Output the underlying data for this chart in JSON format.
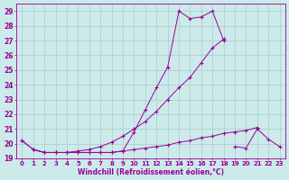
{
  "xlabel": "Windchill (Refroidissement éolien,°C)",
  "x_values": [
    0,
    1,
    2,
    3,
    4,
    5,
    6,
    7,
    8,
    9,
    10,
    11,
    12,
    13,
    14,
    15,
    16,
    17,
    18,
    19,
    20,
    21,
    22,
    23
  ],
  "series1": [
    20.2,
    19.6,
    19.4,
    19.4,
    19.4,
    19.4,
    19.4,
    19.4,
    19.4,
    19.5,
    20.8,
    22.3,
    23.8,
    25.2,
    29.0,
    28.5,
    28.6,
    29.0,
    27.0,
    null,
    null,
    null,
    null,
    null
  ],
  "series2": [
    20.2,
    19.6,
    19.4,
    19.4,
    19.4,
    19.5,
    19.6,
    19.8,
    20.1,
    20.5,
    21.0,
    21.5,
    22.2,
    23.0,
    23.8,
    24.5,
    25.5,
    26.5,
    27.1,
    null,
    null,
    null,
    null,
    null
  ],
  "series3": [
    null,
    19.6,
    19.4,
    19.4,
    19.4,
    19.4,
    19.4,
    19.4,
    19.4,
    19.5,
    19.6,
    19.7,
    19.8,
    19.9,
    20.1,
    20.2,
    20.4,
    20.5,
    20.7,
    20.8,
    20.9,
    21.1,
    null,
    null
  ],
  "series4": [
    null,
    null,
    null,
    null,
    null,
    null,
    null,
    null,
    null,
    null,
    null,
    null,
    null,
    null,
    null,
    null,
    null,
    null,
    null,
    19.8,
    19.7,
    21.0,
    20.3,
    19.8
  ],
  "line_color": "#990099",
  "bg_color": "#cceaea",
  "grid_color": "#aacccc",
  "ylim": [
    19.0,
    29.5
  ],
  "xlim": [
    -0.5,
    23.5
  ],
  "yticks": [
    19,
    20,
    21,
    22,
    23,
    24,
    25,
    26,
    27,
    28,
    29
  ],
  "xticks": [
    0,
    1,
    2,
    3,
    4,
    5,
    6,
    7,
    8,
    9,
    10,
    11,
    12,
    13,
    14,
    15,
    16,
    17,
    18,
    19,
    20,
    21,
    22,
    23
  ]
}
